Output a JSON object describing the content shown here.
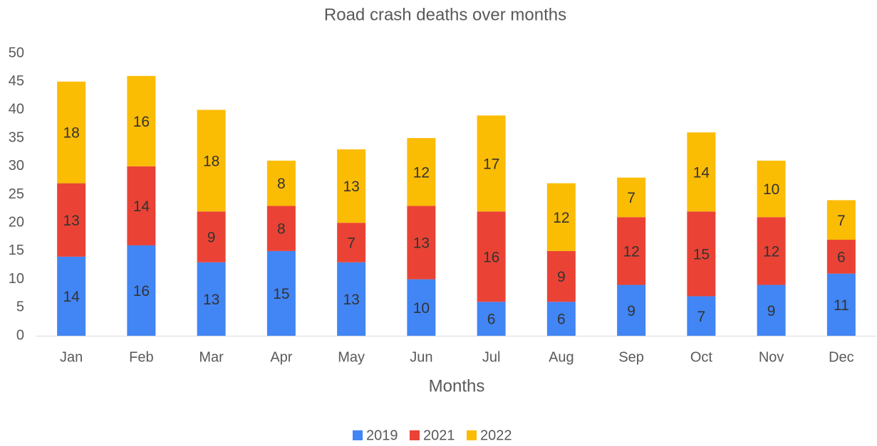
{
  "chart_data": {
    "type": "stacked_bar",
    "title": "Road crash deaths over months",
    "x_label": "Months",
    "categories": [
      "Jan",
      "Feb",
      "Mar",
      "Apr",
      "May",
      "Jun",
      "Jul",
      "Aug",
      "Sep",
      "Oct",
      "Nov",
      "Dec"
    ],
    "series": [
      {
        "name": "2019",
        "color": "#4285f4",
        "values": [
          14,
          16,
          13,
          15,
          13,
          10,
          6,
          6,
          9,
          7,
          9,
          11
        ]
      },
      {
        "name": "2021",
        "color": "#ea4335",
        "values": [
          13,
          14,
          9,
          8,
          7,
          13,
          16,
          9,
          12,
          15,
          12,
          6
        ]
      },
      {
        "name": "2022",
        "color": "#fbbc04",
        "values": [
          18,
          16,
          18,
          8,
          13,
          12,
          17,
          12,
          7,
          14,
          10,
          7
        ]
      }
    ],
    "ylim": [
      0,
      50
    ],
    "yticks": [
      0,
      5,
      10,
      15,
      20,
      25,
      30,
      35,
      40,
      45,
      50
    ],
    "grid": false,
    "legend": "bottom"
  }
}
